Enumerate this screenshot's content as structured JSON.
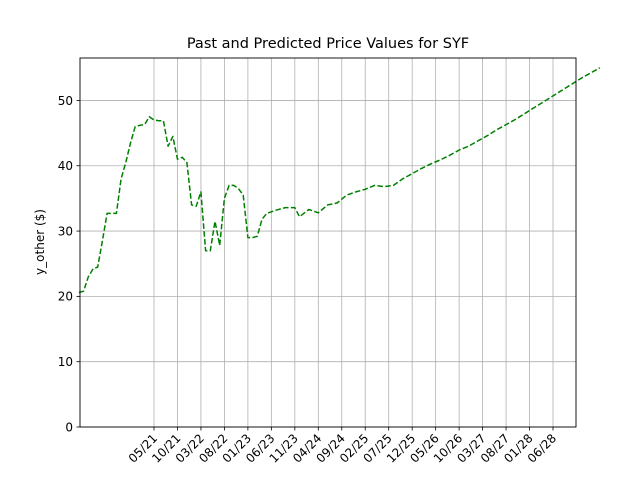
{
  "chart_data": {
    "type": "line",
    "title": "Past and Predicted Price Values for SYF",
    "xlabel": "",
    "ylabel": "y_other ($)",
    "ylim": [
      0,
      56.5
    ],
    "yticks": [
      0,
      10,
      20,
      30,
      40,
      50
    ],
    "xticks": [
      "05/21",
      "10/21",
      "03/22",
      "08/22",
      "01/23",
      "06/23",
      "11/23",
      "04/24",
      "09/24",
      "02/25",
      "07/25",
      "12/25",
      "05/26",
      "10/26",
      "03/27",
      "08/27",
      "01/28",
      "06/28"
    ],
    "grid": true,
    "series": [
      {
        "color": "#008000",
        "line_style": "dashed",
        "points": [
          [
            "2020-01",
            20.6
          ],
          [
            "2020-02",
            20.8
          ],
          [
            "2020-03",
            23.0
          ],
          [
            "2020-04",
            24.2
          ],
          [
            "2020-05",
            24.5
          ],
          [
            "2020-06",
            28.5
          ],
          [
            "2020-07",
            32.7
          ],
          [
            "2020-08",
            32.7
          ],
          [
            "2020-09",
            32.7
          ],
          [
            "2020-10",
            38.0
          ],
          [
            "2020-11",
            40.5
          ],
          [
            "2020-12",
            43.5
          ],
          [
            "2021-01",
            46.0
          ],
          [
            "2021-02",
            46.2
          ],
          [
            "2021-03",
            46.3
          ],
          [
            "2021-04",
            47.5
          ],
          [
            "2021-05",
            47.0
          ],
          [
            "2021-06",
            46.9
          ],
          [
            "2021-07",
            46.9
          ],
          [
            "2021-08",
            43.0
          ],
          [
            "2021-09",
            44.5
          ],
          [
            "2021-10",
            41.0
          ],
          [
            "2021-11",
            41.3
          ],
          [
            "2021-12",
            40.5
          ],
          [
            "2022-01",
            34.0
          ],
          [
            "2022-02",
            33.8
          ],
          [
            "2022-03",
            36.0
          ],
          [
            "2022-04",
            27.0
          ],
          [
            "2022-05",
            27.0
          ],
          [
            "2022-06",
            31.5
          ],
          [
            "2022-07",
            27.8
          ],
          [
            "2022-08",
            35.0
          ],
          [
            "2022-09",
            37.0
          ],
          [
            "2022-10",
            37.0
          ],
          [
            "2022-11",
            36.5
          ],
          [
            "2022-12",
            35.5
          ],
          [
            "2023-01",
            29.0
          ],
          [
            "2023-02",
            29.0
          ],
          [
            "2023-03",
            29.2
          ],
          [
            "2023-04",
            31.8
          ],
          [
            "2023-05",
            32.7
          ],
          [
            "2023-07",
            33.2
          ],
          [
            "2023-09",
            33.6
          ],
          [
            "2023-11",
            33.6
          ],
          [
            "2023-12",
            32.2
          ],
          [
            "2024-02",
            33.3
          ],
          [
            "2024-04",
            32.8
          ],
          [
            "2024-06",
            34.0
          ],
          [
            "2024-08",
            34.3
          ],
          [
            "2024-10",
            35.5
          ],
          [
            "2024-12",
            36.0
          ],
          [
            "2025-02",
            36.4
          ],
          [
            "2025-04",
            37.0
          ],
          [
            "2025-06",
            36.8
          ],
          [
            "2025-08",
            37.0
          ],
          [
            "2025-10",
            38.0
          ],
          [
            "2025-12",
            38.8
          ],
          [
            "2026-02",
            39.6
          ],
          [
            "2026-04",
            40.3
          ],
          [
            "2026-06",
            40.9
          ],
          [
            "2026-08",
            41.6
          ],
          [
            "2026-10",
            42.4
          ],
          [
            "2026-12",
            43.0
          ],
          [
            "2027-02",
            43.8
          ],
          [
            "2027-04",
            44.6
          ],
          [
            "2027-06",
            45.5
          ],
          [
            "2027-08",
            46.3
          ],
          [
            "2027-10",
            47.1
          ],
          [
            "2027-12",
            48.0
          ],
          [
            "2028-02",
            48.9
          ],
          [
            "2028-04",
            49.8
          ],
          [
            "2028-06",
            50.7
          ],
          [
            "2028-08",
            51.6
          ],
          [
            "2028-10",
            52.5
          ],
          [
            "2028-12",
            53.4
          ],
          [
            "2029-02",
            54.2
          ],
          [
            "2029-04",
            55.0
          ]
        ]
      }
    ]
  }
}
